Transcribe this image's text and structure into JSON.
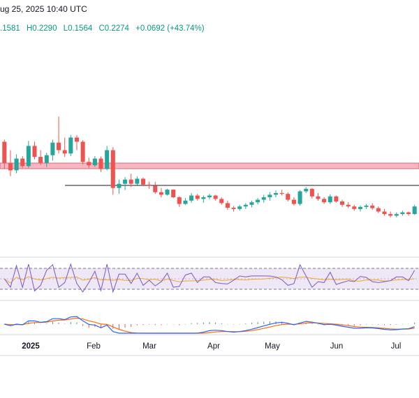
{
  "header": {
    "datetime": "ug 25, 2025 10:40 UTC",
    "open": ".1581",
    "high": "H0.2290",
    "low": "L0.1564",
    "close": "C0.2274",
    "change": "+0.0692 (+43.74%)"
  },
  "colors": {
    "up": "#26a69a",
    "down": "#ef5350",
    "header_text": "#089981",
    "zone_fill": "#f5b7c0",
    "zone_stroke": "#e06478",
    "rsi_line": "#7e57c2",
    "rsi_ma": "#f5a623",
    "rsi_band": "#ede7f6",
    "macd_line": "#2962ff",
    "signal_line": "#ff6d00"
  },
  "chart_data": {
    "type": "candlestick",
    "x_tick_labels": [
      "2025",
      "Feb",
      "Mar",
      "Apr",
      "May",
      "Jun",
      "Jul"
    ],
    "y_range": [
      0.09,
      0.43
    ],
    "candles": [
      [
        0.3,
        0.305,
        0.235,
        0.25
      ],
      [
        0.25,
        0.28,
        0.218,
        0.232
      ],
      [
        0.232,
        0.27,
        0.225,
        0.26
      ],
      [
        0.26,
        0.266,
        0.238,
        0.242
      ],
      [
        0.242,
        0.302,
        0.238,
        0.29
      ],
      [
        0.29,
        0.3,
        0.258,
        0.264
      ],
      [
        0.264,
        0.28,
        0.245,
        0.25
      ],
      [
        0.25,
        0.274,
        0.24,
        0.268
      ],
      [
        0.268,
        0.305,
        0.255,
        0.298
      ],
      [
        0.298,
        0.36,
        0.272,
        0.28
      ],
      [
        0.28,
        0.31,
        0.264,
        0.272
      ],
      [
        0.272,
        0.316,
        0.266,
        0.31
      ],
      [
        0.31,
        0.316,
        0.28,
        0.3
      ],
      [
        0.3,
        0.304,
        0.246,
        0.252
      ],
      [
        0.252,
        0.262,
        0.238,
        0.244
      ],
      [
        0.244,
        0.266,
        0.24,
        0.26
      ],
      [
        0.26,
        0.265,
        0.228,
        0.235
      ],
      [
        0.235,
        0.29,
        0.232,
        0.28
      ],
      [
        0.28,
        0.287,
        0.174,
        0.19
      ],
      [
        0.19,
        0.21,
        0.176,
        0.2
      ],
      [
        0.2,
        0.216,
        0.185,
        0.21
      ],
      [
        0.21,
        0.224,
        0.192,
        0.2
      ],
      [
        0.2,
        0.218,
        0.197,
        0.212
      ],
      [
        0.212,
        0.215,
        0.194,
        0.198
      ],
      [
        0.198,
        0.205,
        0.188,
        0.195
      ],
      [
        0.195,
        0.205,
        0.176,
        0.18
      ],
      [
        0.18,
        0.19,
        0.168,
        0.174
      ],
      [
        0.174,
        0.188,
        0.172,
        0.186
      ],
      [
        0.186,
        0.187,
        0.166,
        0.168
      ],
      [
        0.168,
        0.17,
        0.145,
        0.152
      ],
      [
        0.152,
        0.166,
        0.15,
        0.16
      ],
      [
        0.16,
        0.178,
        0.155,
        0.172
      ],
      [
        0.172,
        0.176,
        0.16,
        0.164
      ],
      [
        0.164,
        0.172,
        0.155,
        0.168
      ],
      [
        0.168,
        0.176,
        0.163,
        0.172
      ],
      [
        0.172,
        0.174,
        0.16,
        0.164
      ],
      [
        0.164,
        0.168,
        0.15,
        0.154
      ],
      [
        0.154,
        0.16,
        0.138,
        0.143
      ],
      [
        0.143,
        0.147,
        0.134,
        0.14
      ],
      [
        0.14,
        0.15,
        0.136,
        0.146
      ],
      [
        0.146,
        0.154,
        0.14,
        0.15
      ],
      [
        0.15,
        0.16,
        0.144,
        0.156
      ],
      [
        0.156,
        0.166,
        0.151,
        0.162
      ],
      [
        0.162,
        0.174,
        0.155,
        0.168
      ],
      [
        0.168,
        0.18,
        0.16,
        0.174
      ],
      [
        0.174,
        0.184,
        0.168,
        0.178
      ],
      [
        0.178,
        0.186,
        0.172,
        0.176
      ],
      [
        0.176,
        0.18,
        0.158,
        0.162
      ],
      [
        0.162,
        0.168,
        0.148,
        0.152
      ],
      [
        0.152,
        0.185,
        0.148,
        0.182
      ],
      [
        0.182,
        0.192,
        0.178,
        0.188
      ],
      [
        0.188,
        0.19,
        0.165,
        0.17
      ],
      [
        0.17,
        0.178,
        0.16,
        0.164
      ],
      [
        0.164,
        0.168,
        0.152,
        0.156
      ],
      [
        0.156,
        0.175,
        0.152,
        0.17
      ],
      [
        0.17,
        0.172,
        0.155,
        0.158
      ],
      [
        0.158,
        0.162,
        0.145,
        0.15
      ],
      [
        0.15,
        0.156,
        0.142,
        0.146
      ],
      [
        0.146,
        0.15,
        0.136,
        0.14
      ],
      [
        0.14,
        0.148,
        0.134,
        0.145
      ],
      [
        0.145,
        0.152,
        0.14,
        0.148
      ],
      [
        0.148,
        0.154,
        0.138,
        0.142
      ],
      [
        0.142,
        0.146,
        0.13,
        0.134
      ],
      [
        0.134,
        0.14,
        0.124,
        0.128
      ],
      [
        0.128,
        0.134,
        0.12,
        0.124
      ],
      [
        0.124,
        0.132,
        0.12,
        0.128
      ],
      [
        0.128,
        0.136,
        0.124,
        0.132
      ],
      [
        0.132,
        0.134,
        0.124,
        0.128
      ],
      [
        0.128,
        0.15,
        0.126,
        0.146
      ]
    ]
  },
  "resistance_zone": [
    0.218,
    0.226
  ],
  "level_line": 0.2
}
